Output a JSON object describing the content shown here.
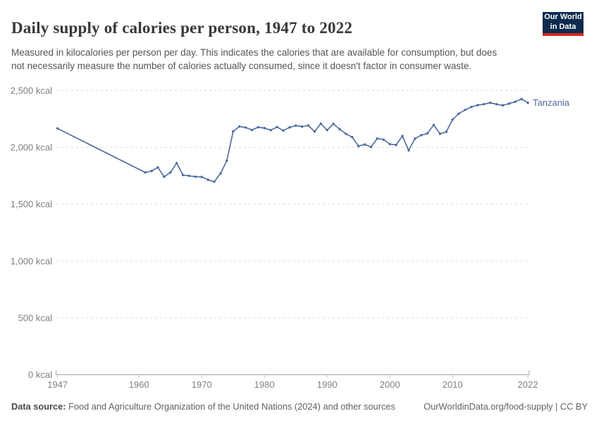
{
  "header": {
    "title": "Daily supply of calories per person, 1947 to 2022",
    "subtitle": "Measured in kilocalories per person per day. This indicates the calories that are available for consumption, but does not necessarily measure the number of calories actually consumed, since it doesn't factor in consumer waste."
  },
  "logo": {
    "line1": "Our World",
    "line2": "in Data"
  },
  "chart_data": {
    "type": "line",
    "title": "Daily supply of calories per person, 1947 to 2022",
    "entity": "Tanzania",
    "unit": "kcal",
    "xlabel": "",
    "ylabel": "",
    "xlim": [
      1947,
      2022
    ],
    "ylim": [
      0,
      2500
    ],
    "grid": "horizontal-dashed",
    "legend": "end-of-line-label",
    "x": [
      1947,
      1961,
      1962,
      1963,
      1964,
      1965,
      1966,
      1967,
      1968,
      1969,
      1970,
      1971,
      1972,
      1973,
      1974,
      1975,
      1976,
      1977,
      1978,
      1979,
      1980,
      1981,
      1982,
      1983,
      1984,
      1985,
      1986,
      1987,
      1988,
      1989,
      1990,
      1991,
      1992,
      1993,
      1994,
      1995,
      1996,
      1997,
      1998,
      1999,
      2000,
      2001,
      2002,
      2003,
      2004,
      2005,
      2006,
      2007,
      2008,
      2009,
      2010,
      2011,
      2012,
      2013,
      2014,
      2015,
      2016,
      2017,
      2018,
      2019,
      2020,
      2021,
      2022
    ],
    "values": [
      2167,
      1780,
      1792,
      1824,
      1742,
      1780,
      1862,
      1757,
      1750,
      1742,
      1740,
      1715,
      1698,
      1772,
      1883,
      2140,
      2184,
      2175,
      2153,
      2178,
      2170,
      2152,
      2179,
      2148,
      2176,
      2192,
      2183,
      2193,
      2140,
      2209,
      2152,
      2207,
      2160,
      2119,
      2090,
      2012,
      2026,
      2004,
      2079,
      2068,
      2029,
      2022,
      2100,
      1974,
      2077,
      2108,
      2124,
      2198,
      2120,
      2137,
      2245,
      2297,
      2330,
      2356,
      2372,
      2380,
      2393,
      2380,
      2370,
      2385,
      2402,
      2425,
      2393
    ],
    "yticks": [
      {
        "value": 0,
        "label": "0 kcal"
      },
      {
        "value": 500,
        "label": "500 kcal"
      },
      {
        "value": 1000,
        "label": "1,000 kcal"
      },
      {
        "value": 1500,
        "label": "1,500 kcal"
      },
      {
        "value": 2000,
        "label": "2,000 kcal"
      },
      {
        "value": 2500,
        "label": "2,500 kcal"
      }
    ],
    "xticks": [
      {
        "value": 1947,
        "label": "1947"
      },
      {
        "value": 1960,
        "label": "1960"
      },
      {
        "value": 1970,
        "label": "1970"
      },
      {
        "value": 1980,
        "label": "1980"
      },
      {
        "value": 1990,
        "label": "1990"
      },
      {
        "value": 2000,
        "label": "2000"
      },
      {
        "value": 2010,
        "label": "2010"
      },
      {
        "value": 2022,
        "label": "2022"
      }
    ],
    "line_color": "#4d6a9d",
    "entity_label_color": "#4d6a9d"
  },
  "colors": {
    "gridline": "#d9d9d9",
    "axis": "#a3a3a3",
    "tick": "#c2c2c2",
    "tick_label": "#808080",
    "logo_bg": "#0c2b4e",
    "logo_stripe": "#d2281e"
  },
  "footer": {
    "datasource_label": "Data source:",
    "datasource_text": " Food and Agriculture Organization of the United Nations (2024) and other sources",
    "credit": "OurWorldinData.org/food-supply | CC BY"
  }
}
